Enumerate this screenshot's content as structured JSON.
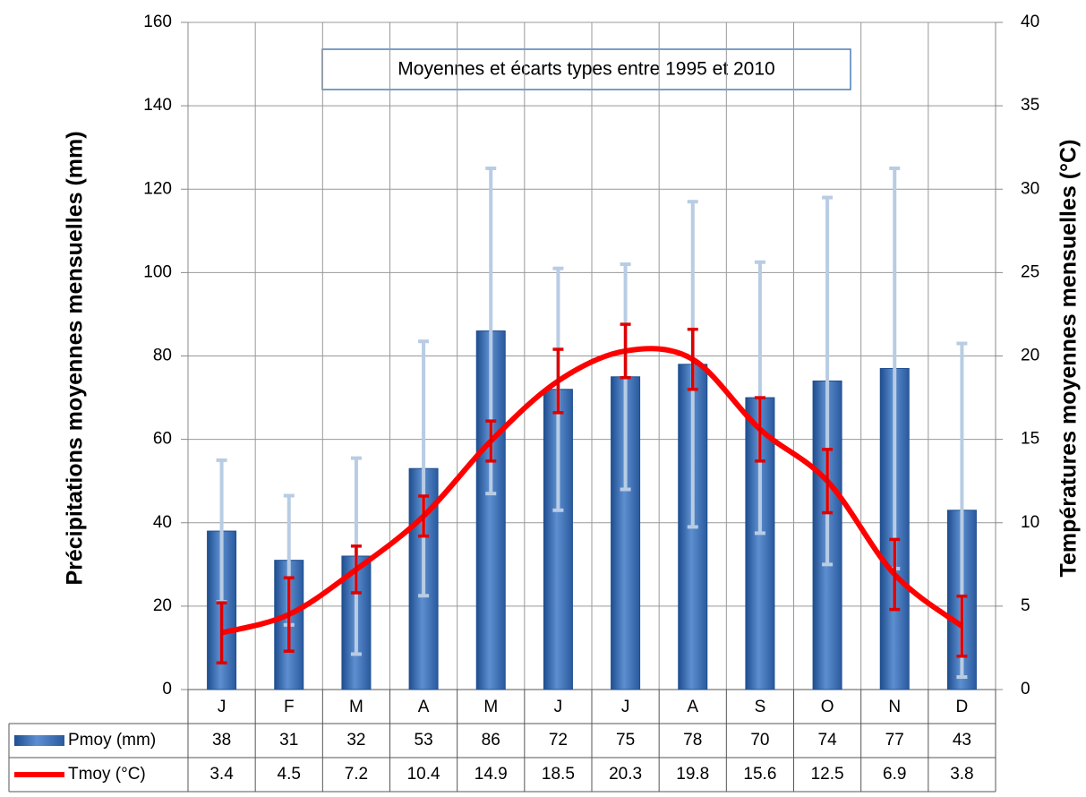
{
  "chart_data": {
    "type": "bar_line",
    "annotation": "Moyennes et écarts types entre 1995 et 2010",
    "y_label": "Précipitations moyennes mensuelles (mm)",
    "y2_label": "Températures moyennes mensuelles (°C)",
    "categories": [
      "J",
      "F",
      "M",
      "A",
      "M",
      "J",
      "J",
      "A",
      "S",
      "O",
      "N",
      "D"
    ],
    "series": [
      {
        "name": "Pmoy (mm)",
        "type": "bar",
        "color": "#3a6fb5",
        "error_color": "#b8cce4",
        "values": [
          38,
          31,
          32,
          53,
          86,
          72,
          75,
          78,
          70,
          74,
          77,
          43
        ],
        "errors": [
          17,
          15.5,
          23.5,
          30.5,
          39,
          29,
          27,
          39,
          32.5,
          44,
          48,
          40
        ]
      },
      {
        "name": "Tmoy (°C)",
        "type": "line",
        "axis": "y2",
        "color": "#ff0000",
        "error_color": "#e00000",
        "values": [
          3.4,
          4.5,
          7.2,
          10.4,
          14.9,
          18.5,
          20.3,
          19.8,
          15.6,
          12.5,
          6.9,
          3.8
        ],
        "errors": [
          1.8,
          2.2,
          1.4,
          1.2,
          1.2,
          1.9,
          1.6,
          1.8,
          1.9,
          1.9,
          2.1,
          1.8
        ]
      }
    ],
    "ylim": [
      0,
      160
    ],
    "yticks": [
      0,
      20,
      40,
      60,
      80,
      100,
      120,
      140,
      160
    ],
    "y2lim": [
      0,
      40
    ],
    "y2ticks": [
      0,
      5,
      10,
      15,
      20,
      25,
      30,
      35,
      40
    ],
    "grid": true
  }
}
